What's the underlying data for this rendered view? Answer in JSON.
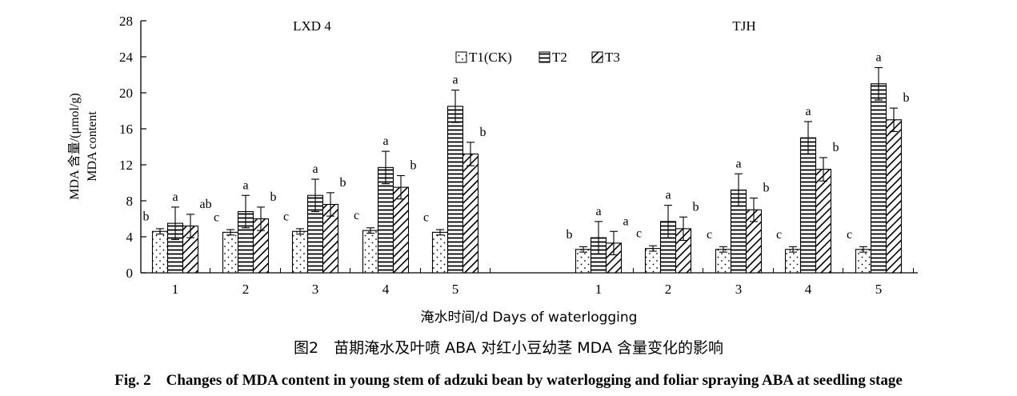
{
  "chart_data": {
    "type": "bar",
    "ylabel_lines": [
      "MDA 含量/(μmol/g)",
      "MDA content"
    ],
    "xlabel": "淹水时间/d Days of waterlogging",
    "ylim": [
      0,
      28
    ],
    "yticks": [
      "0",
      "4",
      "8",
      "12",
      "16",
      "20",
      "24",
      "28"
    ],
    "legend": [
      "T1(CK)",
      "T2",
      "T3"
    ],
    "legend_placement": "top-center",
    "grid": false,
    "patterns": {
      "T1(CK)": "dots",
      "T2": "horizontal-lines",
      "T3": "diagonal-lines"
    },
    "groups": [
      {
        "title": "LXD 4",
        "categories": [
          "1",
          "2",
          "3",
          "4",
          "5"
        ],
        "series": [
          {
            "name": "T1(CK)",
            "values": [
              4.6,
              4.5,
              4.6,
              4.7,
              4.5
            ],
            "errors": [
              0.3,
              0.3,
              0.3,
              0.3,
              0.3
            ],
            "labels": [
              "b",
              "c",
              "c",
              "c",
              "c"
            ]
          },
          {
            "name": "T2",
            "values": [
              5.5,
              6.8,
              8.6,
              11.7,
              18.5
            ],
            "errors": [
              1.8,
              1.8,
              1.8,
              1.8,
              1.8
            ],
            "labels": [
              "a",
              "a",
              "a",
              "a",
              "a"
            ]
          },
          {
            "name": "T3",
            "values": [
              5.2,
              6.0,
              7.6,
              9.5,
              13.2
            ],
            "errors": [
              1.3,
              1.3,
              1.3,
              1.3,
              1.3
            ],
            "labels": [
              "ab",
              "b",
              "b",
              "b",
              "b"
            ]
          }
        ]
      },
      {
        "title": "TJH",
        "categories": [
          "1",
          "2",
          "3",
          "4",
          "5"
        ],
        "series": [
          {
            "name": "T1(CK)",
            "values": [
              2.6,
              2.7,
              2.6,
              2.6,
              2.6
            ],
            "errors": [
              0.3,
              0.3,
              0.3,
              0.3,
              0.3
            ],
            "labels": [
              "b",
              "c",
              "c",
              "c",
              "c"
            ]
          },
          {
            "name": "T2",
            "values": [
              3.9,
              5.7,
              9.2,
              15.0,
              21.0
            ],
            "errors": [
              1.8,
              1.8,
              1.8,
              1.8,
              1.8
            ],
            "labels": [
              "a",
              "a",
              "a",
              "a",
              "a"
            ]
          },
          {
            "name": "T3",
            "values": [
              3.3,
              4.9,
              7.0,
              11.5,
              17.0
            ],
            "errors": [
              1.3,
              1.3,
              1.3,
              1.3,
              1.3
            ],
            "labels": [
              "a",
              "b",
              "b",
              "b",
              "b"
            ]
          }
        ]
      }
    ]
  },
  "caption": {
    "cn": "图2　苗期淹水及叶喷 ABA 对红小豆幼茎 MDA 含量变化的影响",
    "en": "Fig. 2　Changes of MDA content in young stem of adzuki bean by waterlogging and foliar spraying ABA at seedling stage"
  }
}
